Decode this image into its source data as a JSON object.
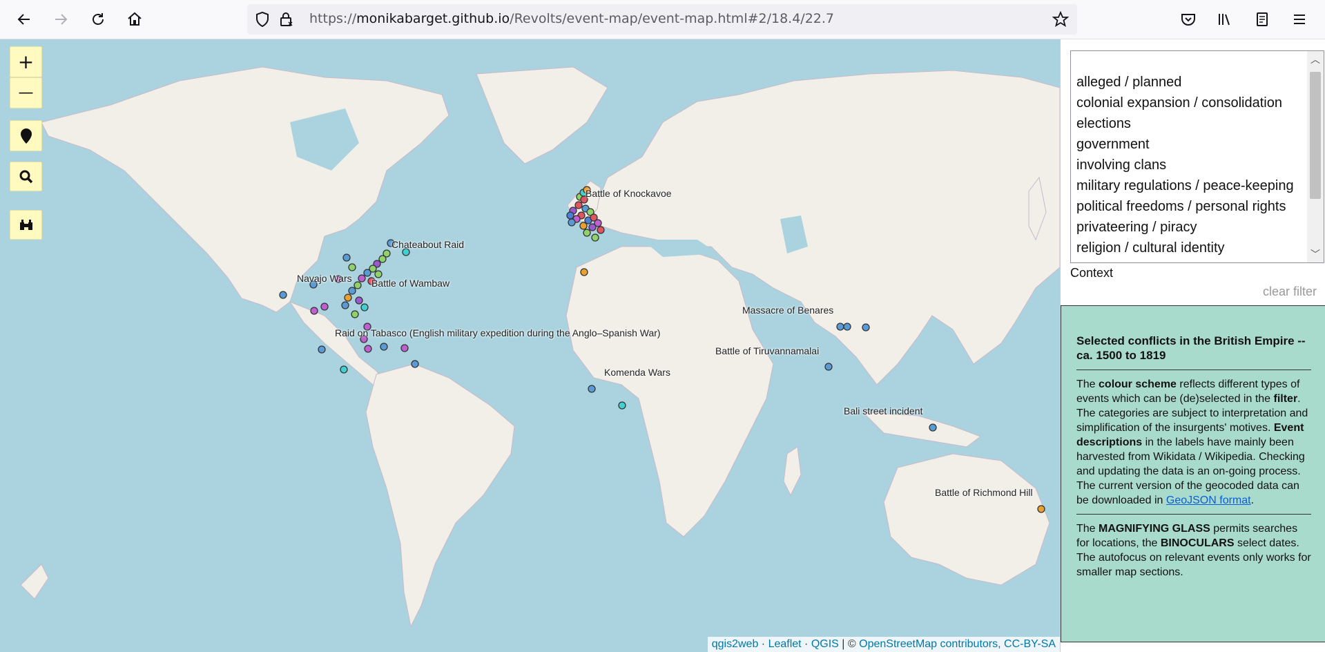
{
  "browser": {
    "url_prefix": "https://",
    "url_host": "monikabarget.github.io",
    "url_path": "/Revolts/event-map/event-map.html#2/18.4/22.7",
    "icons": [
      "back-icon",
      "forward-icon",
      "reload-icon",
      "home-icon",
      "shield-icon",
      "lock-icon",
      "star-icon",
      "pocket-icon",
      "library-icon",
      "reader-icon",
      "menu-icon"
    ]
  },
  "map": {
    "controls": {
      "zoom_in": "+",
      "zoom_out": "—"
    },
    "labels": [
      "Battle of Knockavoe",
      "Chateabout Raid",
      "Navajo Wars",
      "Battle of Wambaw",
      "Raid on Tabasco (English military expedition during the Anglo–Spanish War)",
      "Massacre of Benares",
      "Battle of Tiruvannamalai",
      "Komenda Wars",
      "Bali street incident",
      "Battle of Richmond Hill"
    ],
    "attribution": {
      "qgis2web": "qgis2web",
      "sep1": " · ",
      "leaflet": "Leaflet",
      "sep2": " · ",
      "qgis": "QGIS",
      "sep3": " | © ",
      "osm": "OpenStreetMap contributors, CC-BY-SA"
    },
    "marker_colors": [
      "#5b9bd5",
      "#9b59d0",
      "#8fd16a",
      "#e05560",
      "#e8a030",
      "#40d0d0",
      "#c05fd0",
      "#4e7fd6"
    ]
  },
  "filter": {
    "options": [
      "alleged / planned",
      "colonial expansion / consolidation",
      "elections",
      "government",
      "involving clans",
      "military regulations / peace-keeping",
      "political freedoms / personal rights",
      "privateering / piracy",
      "religion / cultural identity"
    ],
    "label": "Context",
    "clear": "clear filter"
  },
  "info": {
    "title": "Selected conflicts in the British Empire -- ca. 1500 to 1819",
    "p1_a": "The ",
    "p1_b": "colour scheme",
    "p1_c": " reflects different types of events which can be (de)selected in the ",
    "p1_d": "filter",
    "p1_e": ". The categories are subject to interpretation and simplification of the insurgents' motives. ",
    "p1_f": "Event descriptions",
    "p1_g": " in the labels have mainly been harvested from Wikidata / Wikipedia. Checking and updating the data is an on-going process. The current version of the geocoded data can be downloaded in ",
    "p1_link": "GeoJSON format",
    "p1_h": ".",
    "p2_a": "The ",
    "p2_b": "MAGNIFYING GLASS",
    "p2_c": " permits searches for locations, the ",
    "p2_d": "BINOCULARS",
    "p2_e": " select dates. The autofocus on relevant events only works for smaller map sections."
  }
}
